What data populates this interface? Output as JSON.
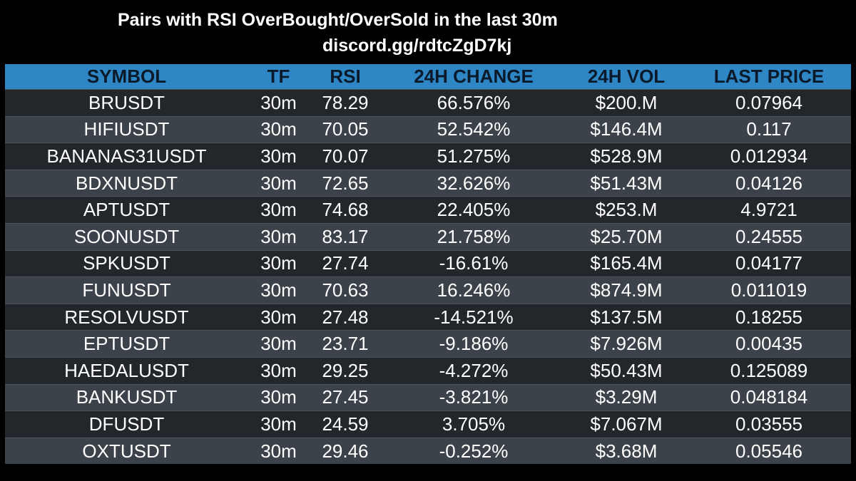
{
  "header": {
    "title": "Pairs with RSI OverBought/OverSold in the last 30m",
    "link": "discord.gg/rdtcZgD7kj"
  },
  "colors": {
    "background": "#000000",
    "header_bg": "#2e86c4",
    "header_text": "#0b1a2a",
    "row_dark": "#23272c",
    "row_light": "#3c4249",
    "text": "#ffffff"
  },
  "table": {
    "columns": [
      "SYMBOL",
      "TF",
      "RSI",
      "24H CHANGE",
      "24H VOL",
      "LAST PRICE"
    ],
    "rows": [
      [
        "BRUSDT",
        "30m",
        "78.29",
        "66.576%",
        "$200.M",
        "0.07964"
      ],
      [
        "HIFIUSDT",
        "30m",
        "70.05",
        "52.542%",
        "$146.4M",
        "0.117"
      ],
      [
        "BANANAS31USDT",
        "30m",
        "70.07",
        "51.275%",
        "$528.9M",
        "0.012934"
      ],
      [
        "BDXNUSDT",
        "30m",
        "72.65",
        "32.626%",
        "$51.43M",
        "0.04126"
      ],
      [
        "APTUSDT",
        "30m",
        "74.68",
        "22.405%",
        "$253.M",
        "4.9721"
      ],
      [
        "SOONUSDT",
        "30m",
        "83.17",
        "21.758%",
        "$25.70M",
        "0.24555"
      ],
      [
        "SPKUSDT",
        "30m",
        "27.74",
        "-16.61%",
        "$165.4M",
        "0.04177"
      ],
      [
        "FUNUSDT",
        "30m",
        "70.63",
        "16.246%",
        "$874.9M",
        "0.011019"
      ],
      [
        "RESOLVUSDT",
        "30m",
        "27.48",
        "-14.521%",
        "$137.5M",
        "0.18255"
      ],
      [
        "EPTUSDT",
        "30m",
        "23.71",
        "-9.186%",
        "$7.926M",
        "0.00435"
      ],
      [
        "HAEDALUSDT",
        "30m",
        "29.25",
        "-4.272%",
        "$50.43M",
        "0.125089"
      ],
      [
        "BANKUSDT",
        "30m",
        "27.45",
        "-3.821%",
        "$3.29M",
        "0.048184"
      ],
      [
        "DFUSDT",
        "30m",
        "24.59",
        "3.705%",
        "$7.067M",
        "0.03555"
      ],
      [
        "OXTUSDT",
        "30m",
        "29.46",
        "-0.252%",
        "$3.68M",
        "0.05546"
      ]
    ]
  }
}
